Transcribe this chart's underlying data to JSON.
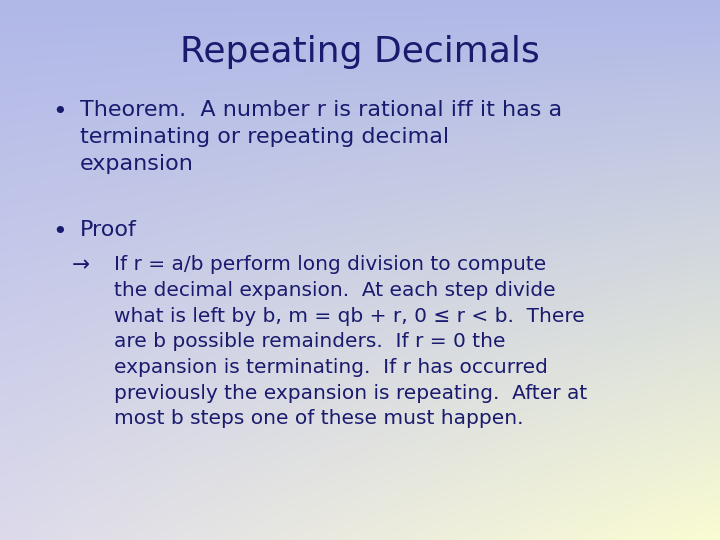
{
  "title": "Repeating Decimals",
  "title_color": "#1a1a6e",
  "title_fontsize": 26,
  "bullet_fontsize": 16,
  "sub_bullet_fontsize": 14.5,
  "bullets": [
    "Theorem.  A number r is rational iff it has a\nterminating or repeating decimal\nexpansion",
    "Proof"
  ],
  "sub_bullet": "If r = a/b perform long division to compute\nthe decimal expansion.  At each step divide\nwhat is left by b, m = qb + r, 0 ≤ r < b.  There\nare b possible remainders.  If r = 0 the\nexpansion is terminating.  If r has occurred\npreviously the expansion is repeating.  After at\nmost b steps one of these must happen.",
  "arrow": "→",
  "text_color": "#1a1a6e",
  "bg_tl": [
    176,
    184,
    232
  ],
  "bg_tr": [
    176,
    184,
    232
  ],
  "bg_bl": [
    220,
    218,
    235
  ],
  "bg_br": [
    250,
    252,
    210
  ]
}
